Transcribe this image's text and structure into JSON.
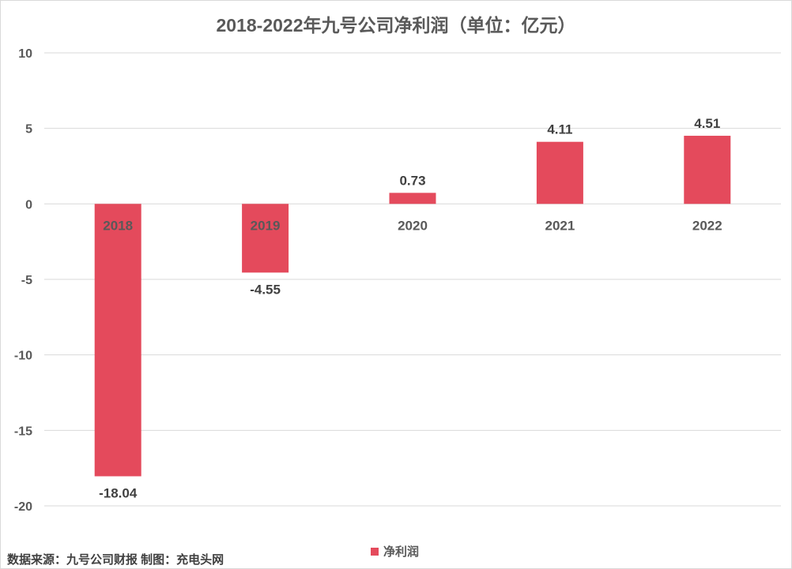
{
  "chart_data": {
    "type": "bar",
    "title": "2018-2022年九号公司净利润（单位：亿元）",
    "categories": [
      "2018",
      "2019",
      "2020",
      "2021",
      "2022"
    ],
    "series": [
      {
        "name": "净利润",
        "values": [
          -18.04,
          -4.55,
          0.73,
          4.11,
          4.51
        ],
        "color": "#e44a5c"
      }
    ],
    "data_labels": [
      "-18.04",
      "-4.55",
      "0.73",
      "4.11",
      "4.51"
    ],
    "ylim": [
      -20,
      10
    ],
    "yticks": [
      10,
      5,
      0,
      -5,
      -10,
      -15,
      -20
    ],
    "grid": true,
    "legend_position": "bottom-center"
  },
  "footer": {
    "source": "数据来源：九号公司财报  制图：充电头网"
  },
  "colors": {
    "bar": "#e44a5c",
    "grid": "#d9d9d9",
    "text": "#595959"
  }
}
